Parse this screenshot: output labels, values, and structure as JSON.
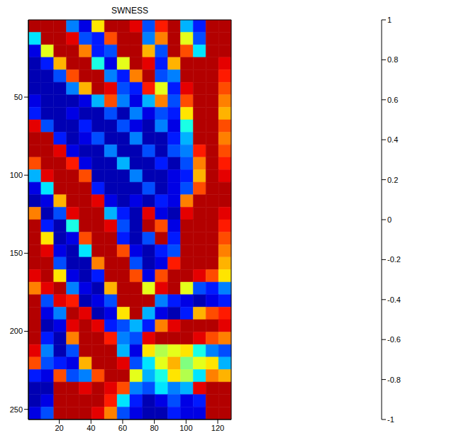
{
  "chart_data": {
    "type": "heatmap",
    "title": "SWNESS",
    "xlim": [
      0.5,
      128.5
    ],
    "xticks": [
      20,
      40,
      60,
      80,
      100,
      120
    ],
    "ylim": [
      0.5,
      256.5
    ],
    "yticks": [
      50,
      100,
      150,
      200,
      250
    ],
    "cells": [
      [
        0.9,
        0.9,
        0.9,
        -0.5,
        -0.8,
        0.3,
        0.9,
        0.9,
        0.8,
        -0.6,
        0.7,
        0.9,
        -0.4,
        -0.7,
        0.9,
        0.9
      ],
      [
        -0.3,
        0.9,
        0.9,
        0.8,
        -0.6,
        -0.7,
        0.6,
        0.9,
        0.9,
        -0.5,
        0.5,
        0.9,
        0.2,
        -0.6,
        0.9,
        0.9
      ],
      [
        -0.8,
        0.2,
        0.9,
        0.9,
        0.5,
        -0.7,
        -0.6,
        0.9,
        0.9,
        0.4,
        -0.6,
        0.9,
        0.6,
        -0.3,
        0.9,
        0.9
      ],
      [
        -0.9,
        -0.7,
        0.4,
        0.9,
        0.9,
        -0.2,
        -0.8,
        0.2,
        0.9,
        0.8,
        -0.7,
        0.4,
        0.9,
        0.9,
        0.9,
        0.8
      ],
      [
        -0.9,
        -0.9,
        -0.6,
        0.6,
        0.9,
        0.9,
        -0.5,
        -0.7,
        0.5,
        0.9,
        -0.6,
        -0.5,
        0.9,
        0.9,
        0.9,
        0.7
      ],
      [
        -0.9,
        -0.9,
        -0.9,
        -0.5,
        0.4,
        0.9,
        0.8,
        -0.6,
        -0.7,
        0.7,
        0.2,
        -0.7,
        0.8,
        0.9,
        0.9,
        0.6
      ],
      [
        -0.8,
        -0.9,
        -0.9,
        -0.9,
        -0.8,
        -0.4,
        0.6,
        -0.5,
        -0.8,
        -0.4,
        0.5,
        -0.6,
        0.6,
        0.9,
        0.9,
        0.5
      ],
      [
        -0.7,
        -0.9,
        -0.9,
        -0.8,
        -0.9,
        -0.9,
        -0.6,
        -0.9,
        -0.5,
        -0.8,
        -0.6,
        -0.7,
        0.3,
        0.9,
        0.9,
        0.4
      ],
      [
        0.8,
        -0.6,
        -0.9,
        -0.9,
        -0.7,
        -0.9,
        -0.9,
        -0.6,
        -0.8,
        -0.9,
        -0.5,
        -0.8,
        -0.2,
        0.9,
        0.9,
        0.6
      ],
      [
        0.9,
        0.9,
        -0.7,
        -0.9,
        -0.8,
        -0.6,
        -0.9,
        -0.9,
        -0.5,
        -0.9,
        -0.9,
        -0.7,
        -0.4,
        0.9,
        0.9,
        0.5
      ],
      [
        0.9,
        0.9,
        0.8,
        -0.8,
        -0.9,
        -0.9,
        -0.5,
        -0.9,
        -0.9,
        -0.6,
        -0.9,
        -0.6,
        -0.5,
        0.7,
        0.9,
        0.6
      ],
      [
        0.6,
        0.9,
        0.9,
        0.7,
        -0.8,
        -0.9,
        -0.9,
        -0.4,
        -0.9,
        -0.9,
        -0.7,
        -0.9,
        -0.6,
        0.5,
        0.9,
        0.7
      ],
      [
        -0.4,
        0.8,
        0.9,
        0.9,
        0.6,
        -0.9,
        -0.9,
        -0.9,
        -0.5,
        -0.9,
        -0.9,
        -0.8,
        -0.7,
        0.4,
        0.9,
        0.8
      ],
      [
        -0.8,
        -0.3,
        0.9,
        0.9,
        0.9,
        -0.7,
        -0.9,
        -0.9,
        -0.9,
        -0.6,
        -0.9,
        -0.8,
        -0.6,
        0.6,
        0.9,
        0.9
      ],
      [
        -0.9,
        -0.8,
        0.4,
        0.9,
        0.9,
        0.8,
        -0.8,
        -0.9,
        -0.8,
        -0.9,
        -0.7,
        -0.8,
        0.5,
        0.9,
        0.9,
        0.9
      ],
      [
        0.5,
        -0.9,
        -0.6,
        0.8,
        0.9,
        0.9,
        -0.4,
        -0.7,
        -0.9,
        0.8,
        -0.8,
        -0.9,
        0.8,
        0.9,
        0.9,
        0.8
      ],
      [
        0.9,
        -0.7,
        -0.9,
        -0.2,
        0.9,
        0.9,
        0.8,
        -0.6,
        -0.9,
        0.9,
        0.6,
        -0.8,
        0.9,
        0.9,
        0.9,
        0.7
      ],
      [
        0.9,
        0.3,
        -0.9,
        -0.8,
        0.6,
        0.9,
        0.9,
        -0.7,
        -0.9,
        -0.6,
        0.9,
        -0.7,
        0.9,
        0.9,
        0.9,
        0.6
      ],
      [
        0.9,
        0.8,
        -0.8,
        -0.9,
        -0.3,
        0.9,
        0.9,
        0.6,
        -0.8,
        -0.9,
        -0.7,
        -0.6,
        0.9,
        0.9,
        0.9,
        0.5
      ],
      [
        0.9,
        0.9,
        -0.6,
        -0.9,
        -0.9,
        0.5,
        0.9,
        0.9,
        -0.6,
        -0.9,
        -0.8,
        0.7,
        0.9,
        0.9,
        0.9,
        0.4
      ],
      [
        0.8,
        0.9,
        0.3,
        -0.8,
        -0.9,
        -0.7,
        0.9,
        0.9,
        0.6,
        -0.8,
        0.6,
        0.9,
        0.9,
        0.8,
        0.6,
        0.3
      ],
      [
        0.5,
        0.8,
        0.9,
        -0.5,
        -0.8,
        -0.9,
        0.4,
        0.9,
        0.9,
        0.2,
        0.8,
        0.9,
        0.2,
        -0.6,
        -0.7,
        -0.5
      ],
      [
        0.9,
        -0.6,
        0.8,
        0.7,
        -0.9,
        -0.8,
        -0.6,
        0.9,
        0.9,
        0.9,
        -0.5,
        -0.7,
        -0.8,
        -0.9,
        -0.8,
        -0.7
      ],
      [
        0.9,
        -0.8,
        -0.5,
        0.9,
        0.8,
        -0.9,
        -0.8,
        0.3,
        0.9,
        -0.4,
        -0.8,
        -0.9,
        -0.7,
        0.4,
        0.6,
        0.7
      ],
      [
        0.9,
        -0.9,
        -0.8,
        0.8,
        0.9,
        0.8,
        -0.7,
        -0.6,
        -0.4,
        -0.7,
        0.5,
        0.8,
        0.9,
        0.9,
        0.9,
        0.8
      ],
      [
        0.9,
        -0.7,
        -0.9,
        0.5,
        0.9,
        0.9,
        0.7,
        -0.5,
        -0.6,
        0.8,
        0.9,
        0.9,
        0.9,
        0.8,
        0.6,
        0.5
      ],
      [
        0.8,
        -0.5,
        -0.9,
        -0.6,
        0.9,
        0.9,
        0.9,
        -0.4,
        -0.8,
        0.3,
        0.1,
        0.2,
        0.3,
        -0.2,
        -0.5,
        -0.6
      ],
      [
        0.6,
        -0.6,
        -0.7,
        -0.8,
        0.4,
        0.9,
        0.9,
        0.8,
        -0.6,
        -0.3,
        0.2,
        0.4,
        0.0,
        0.2,
        0.3,
        -0.4
      ],
      [
        -0.7,
        -0.8,
        0.6,
        -0.6,
        -0.5,
        0.6,
        0.9,
        0.9,
        0.2,
        -0.4,
        -0.2,
        0.3,
        0.1,
        -0.3,
        0.5,
        0.4
      ],
      [
        -0.9,
        -0.9,
        0.9,
        0.9,
        0.8,
        0.9,
        0.8,
        0.6,
        -0.5,
        -0.6,
        -0.3,
        -0.5,
        -0.4,
        0.8,
        0.9,
        0.9
      ],
      [
        -0.9,
        -0.8,
        0.9,
        0.9,
        0.9,
        0.9,
        0.7,
        -0.3,
        -0.7,
        -0.9,
        -0.8,
        -0.6,
        -0.8,
        -0.7,
        0.9,
        0.9
      ],
      [
        -0.8,
        -0.6,
        0.9,
        0.9,
        0.9,
        0.8,
        0.5,
        -0.6,
        -0.8,
        -0.9,
        -0.9,
        -0.7,
        -0.8,
        -0.8,
        0.9,
        0.9
      ]
    ],
    "colorbar": {
      "range": [
        -1,
        1
      ],
      "ticks": [
        -1,
        -0.8,
        -0.6,
        -0.4,
        -0.2,
        0,
        0.2,
        0.4,
        0.6,
        0.8,
        1
      ]
    }
  }
}
